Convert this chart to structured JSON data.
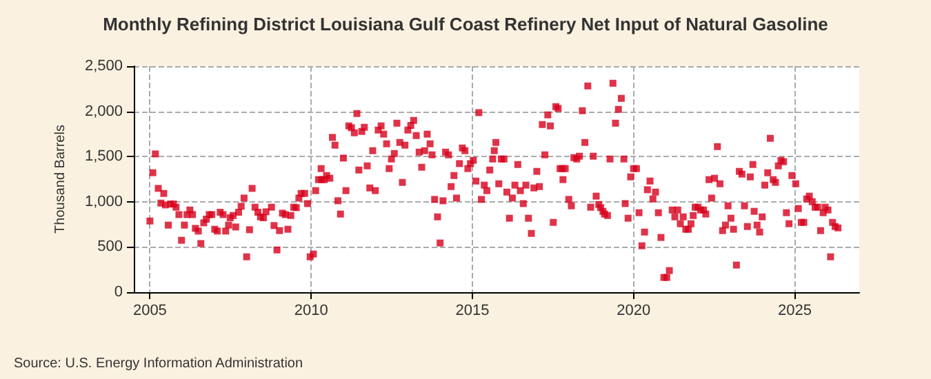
{
  "chart_data": {
    "type": "scatter",
    "title": "Monthly Refining District Louisiana Gulf Coast Refinery Net Input of Natural Gasoline",
    "ylabel": "Thousand Barrels",
    "annotations": [
      "Source: U.S. Energy Information Administration"
    ],
    "marker": "square",
    "grid": true,
    "xlim": [
      2004.5,
      2027
    ],
    "xticks": [
      2005,
      2010,
      2015,
      2020,
      2025
    ],
    "ylim": [
      0,
      2500
    ],
    "yticks": [
      0,
      {
        "value": 500,
        "label": "500"
      },
      {
        "value": 1000,
        "label": "1,000"
      },
      {
        "value": 1500,
        "label": "1,500"
      },
      {
        "value": 2000,
        "label": "2,000"
      },
      {
        "value": 2500,
        "label": "2,500"
      }
    ],
    "series": [
      {
        "color": "#d7001b",
        "x": [
          2005.0,
          2005.09,
          2005.17,
          2005.26,
          2005.34,
          2005.43,
          2005.48,
          2005.57,
          2005.64,
          2005.73,
          2005.81,
          2005.9,
          2005.98,
          2006.07,
          2006.15,
          2006.24,
          2006.32,
          2006.41,
          2006.5,
          2006.58,
          2006.67,
          2006.75,
          2006.84,
          2006.92,
          2007.01,
          2007.09,
          2007.18,
          2007.27,
          2007.35,
          2007.44,
          2007.49,
          2007.58,
          2007.66,
          2007.75,
          2007.83,
          2007.92,
          2008.0,
          2008.09,
          2008.17,
          2008.26,
          2008.35,
          2008.43,
          2008.52,
          2008.6,
          2008.77,
          2008.85,
          2008.94,
          2009.02,
          2009.11,
          2009.2,
          2009.28,
          2009.37,
          2009.46,
          2009.54,
          2009.62,
          2009.69,
          2009.8,
          2009.89,
          2009.97,
          2010.07,
          2010.14,
          2010.23,
          2010.31,
          2010.33,
          2010.41,
          2010.48,
          2010.58,
          2010.66,
          2010.74,
          2010.83,
          2010.91,
          2011.0,
          2011.08,
          2011.17,
          2011.25,
          2011.34,
          2011.42,
          2011.48,
          2011.57,
          2011.65,
          2011.74,
          2011.82,
          2011.91,
          2011.99,
          2012.08,
          2012.17,
          2012.25,
          2012.34,
          2012.42,
          2012.49,
          2012.58,
          2012.66,
          2012.75,
          2012.83,
          2012.91,
          2013.0,
          2013.09,
          2013.18,
          2013.26,
          2013.35,
          2013.43,
          2013.52,
          2013.6,
          2013.69,
          2013.75,
          2013.83,
          2013.92,
          2014.0,
          2014.09,
          2014.17,
          2014.26,
          2014.34,
          2014.43,
          2014.51,
          2014.6,
          2014.69,
          2014.77,
          2014.86,
          2014.94,
          2015.03,
          2015.11,
          2015.2,
          2015.28,
          2015.37,
          2015.45,
          2015.54,
          2015.63,
          2015.68,
          2015.73,
          2015.82,
          2015.9,
          2015.98,
          2016.07,
          2016.15,
          2016.24,
          2016.32,
          2016.41,
          2016.49,
          2016.58,
          2016.66,
          2016.74,
          2016.83,
          2016.91,
          2017.0,
          2017.08,
          2017.17,
          2017.25,
          2017.34,
          2017.42,
          2017.51,
          2017.59,
          2017.66,
          2017.72,
          2017.79,
          2017.81,
          2017.88,
          2017.99,
          2018.07,
          2018.15,
          2018.24,
          2018.32,
          2018.41,
          2018.49,
          2018.58,
          2018.67,
          2018.75,
          2018.84,
          2018.92,
          2018.98,
          2019.05,
          2019.1,
          2019.19,
          2019.27,
          2019.36,
          2019.44,
          2019.53,
          2019.62,
          2019.7,
          2019.74,
          2019.83,
          2019.91,
          2020.0,
          2020.09,
          2020.17,
          2020.26,
          2020.34,
          2020.43,
          2020.51,
          2020.6,
          2020.68,
          2020.77,
          2020.85,
          2020.94,
          2021.03,
          2021.11,
          2021.2,
          2021.28,
          2021.37,
          2021.45,
          2021.54,
          2021.62,
          2021.7,
          2021.78,
          2021.85,
          2021.91,
          2022.0,
          2022.08,
          2022.17,
          2022.24,
          2022.34,
          2022.42,
          2022.51,
          2022.6,
          2022.68,
          2022.76,
          2022.85,
          2022.93,
          2023.02,
          2023.1,
          2023.19,
          2023.28,
          2023.36,
          2023.44,
          2023.53,
          2023.62,
          2023.7,
          2023.74,
          2023.83,
          2023.91,
          2023.99,
          2024.07,
          2024.16,
          2024.24,
          2024.33,
          2024.4,
          2024.49,
          2024.57,
          2024.65,
          2024.74,
          2024.82,
          2024.91,
          2025.03,
          2025.11,
          2025.2,
          2025.28,
          2025.37,
          2025.45,
          2025.54,
          2025.63,
          2025.71,
          2025.8,
          2025.88,
          2025.94,
          2026.03,
          2026.11,
          2026.17,
          2026.25,
          2026.34
        ],
        "values": [
          787,
          1321,
          1529,
          1148,
          985,
          1092,
          965,
          742,
          975,
          975,
          940,
          858,
          574,
          742,
          858,
          909,
          858,
          706,
          676,
          538,
          767,
          808,
          858,
          858,
          696,
          676,
          884,
          858,
          676,
          742,
          823,
          848,
          721,
          884,
          950,
          1041,
          391,
          691,
          1148,
          940,
          884,
          833,
          823,
          889,
          940,
          737,
          467,
          681,
          874,
          858,
          696,
          848,
          940,
          935,
          1041,
          1092,
          1092,
          980,
          391,
          422,
          1123,
          1245,
          1367,
          1245,
          1245,
          1290,
          1260,
          1712,
          1626,
          1011,
          864,
          1483,
          1123,
          1839,
          1819,
          1763,
          1976,
          1351,
          1778,
          1824,
          1397,
          1153,
          1565,
          1123,
          1793,
          1839,
          1748,
          1641,
          1367,
          1473,
          1534,
          1869,
          1656,
          1214,
          1626,
          1793,
          1844,
          1900,
          1732,
          1549,
          1382,
          1565,
          1748,
          1641,
          1519,
          1026,
          833,
          544,
          1011,
          1549,
          1519,
          1168,
          1290,
          1041,
          1422,
          1595,
          1565,
          1367,
          1422,
          1458,
          1229,
          1986,
          1026,
          1184,
          1123,
          1351,
          1473,
          1565,
          1656,
          1199,
          1473,
          1473,
          1107,
          818,
          1041,
          1184,
          1412,
          1123,
          980,
          1184,
          818,
          650,
          1153,
          1336,
          1168,
          1854,
          1519,
          1961,
          1839,
          772,
          2052,
          2032,
          1367,
          1367,
          1245,
          1367,
          1026,
          955,
          1488,
          1473,
          1504,
          2007,
          1656,
          2281,
          940,
          1504,
          1062,
          970,
          935,
          894,
          864,
          848,
          1473,
          2311,
          1869,
          2022,
          2144,
          1473,
          980,
          818,
          1275,
          1367,
          1367,
          879,
          513,
          665,
          1133,
          1229,
          1031,
          1107,
          879,
          605,
          163,
          163,
          239,
          909,
          833,
          909,
          757,
          833,
          696,
          696,
          757,
          848,
          940,
          940,
          909,
          909,
          864,
          1245,
          1041,
          1260,
          1610,
          1199,
          681,
          742,
          955,
          818,
          696,
          300,
          1336,
          1306,
          955,
          726,
          1275,
          1412,
          894,
          742,
          665,
          833,
          1184,
          1321,
          1702,
          1245,
          1214,
          1397,
          1458,
          1443,
          879,
          757,
          1290,
          1199,
          925,
          772,
          772,
          1031,
          1062,
          1001,
          940,
          940,
          681,
          879,
          940,
          909,
          391,
          772,
          726,
          711
        ]
      }
    ]
  }
}
